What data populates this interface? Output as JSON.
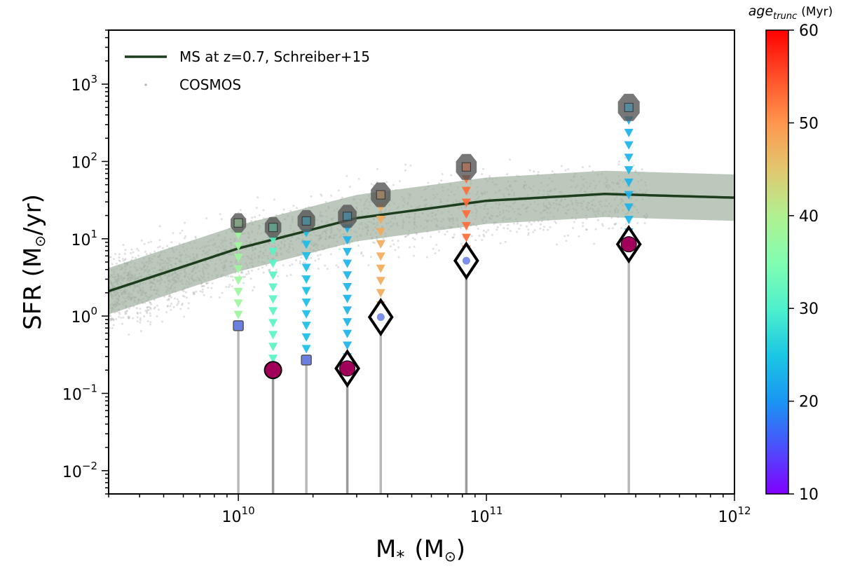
{
  "chart_data": {
    "type": "scatter",
    "xscale": "log",
    "yscale": "log",
    "xlim": [
      3000000000,
      1000000000000
    ],
    "ylim": [
      0.005,
      5000
    ],
    "xlabel": "M",
    "xlabel_sub": "*",
    "xlabel_unit": "(M",
    "xlabel_unit_close": ")",
    "ylabel": "SFR (M",
    "ylabel_close": "/yr)",
    "x_ticks": [
      {
        "base": "10",
        "exp": "10",
        "value": 10000000000
      },
      {
        "base": "10",
        "exp": "11",
        "value": 100000000000
      },
      {
        "base": "10",
        "exp": "12",
        "value": 1000000000000
      }
    ],
    "y_ticks": [
      {
        "base": "10",
        "exp": "−2",
        "value": 0.01
      },
      {
        "base": "10",
        "exp": "−1",
        "value": 0.1
      },
      {
        "base": "10",
        "exp": "0",
        "value": 1,
        "plain": "10",
        "plain_exp": "0"
      },
      {
        "base": "10",
        "exp": "1",
        "value": 10
      },
      {
        "base": "10",
        "exp": "2",
        "value": 100
      },
      {
        "base": "10",
        "exp": "3",
        "value": 1000
      }
    ],
    "legend": {
      "position": "top-left",
      "entries": [
        {
          "label": "MS at z=0.7, Schreiber+15",
          "type": "line",
          "color": "#1e3d1e"
        },
        {
          "label": "COSMOS",
          "type": "scatter",
          "color": "#b0b0b0"
        }
      ]
    },
    "main_sequence": {
      "color": "#1e3d1e",
      "band_color": "#98ab98",
      "band_opacity": 0.65,
      "band_dex": 0.3,
      "x": [
        3000000000,
        10000000000,
        30000000000,
        100000000000,
        300000000000,
        1000000000000
      ],
      "y": [
        2.1,
        7.5,
        18.5,
        31,
        38,
        34
      ]
    },
    "colorbar": {
      "title_italic": "age",
      "title_sub": "trunc",
      "title_unit": "(Myr)",
      "min": 10,
      "max": 60,
      "ticks": [
        10,
        20,
        30,
        40,
        50,
        60
      ]
    },
    "galaxies": [
      {
        "mass": 10000000000,
        "sfr_start": 16,
        "sfr_end": 0.75,
        "age_trunc": 38,
        "marker": "square",
        "color": "#6a7fe0"
      },
      {
        "mass": 13800000000,
        "sfr_start": 14,
        "sfr_end": 0.2,
        "age_trunc": 31,
        "marker": "circle",
        "color": "#a0005a"
      },
      {
        "mass": 18800000000,
        "sfr_start": 17,
        "sfr_end": 0.27,
        "age_trunc": 24,
        "marker": "square",
        "color": "#6a7fe0"
      },
      {
        "mass": 27500000000,
        "sfr_start": 19.5,
        "sfr_end": 0.21,
        "age_trunc": 23,
        "marker": "diamond",
        "color": "#a0005a"
      },
      {
        "mass": 37500000000,
        "sfr_start": 37,
        "sfr_end": 0.97,
        "age_trunc": 48,
        "marker": "diamond",
        "color": "#7d8fe6"
      },
      {
        "mass": 83000000000,
        "sfr_start": 85,
        "sfr_end": 5.2,
        "age_trunc": 53,
        "marker": "diamond",
        "color": "#7d8fe6"
      },
      {
        "mass": 375000000000,
        "sfr_start": 500,
        "sfr_end": 8.5,
        "age_trunc": 23,
        "marker": "diamond",
        "color": "#a0005a"
      }
    ]
  }
}
